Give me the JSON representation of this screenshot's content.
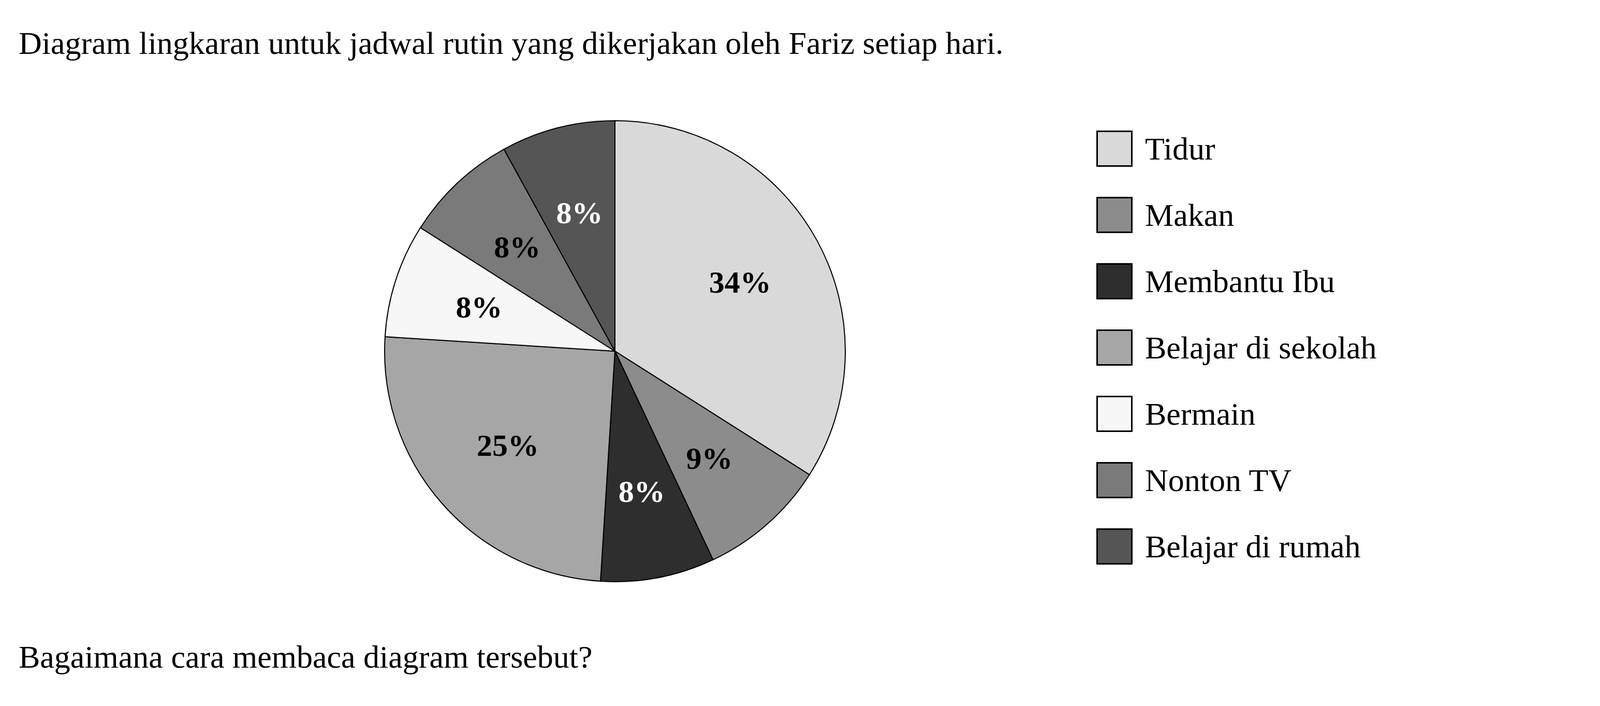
{
  "chart_data": {
    "type": "pie",
    "title": "Diagram lingkaran untuk jadwal rutin yang dikerjakan oleh Fariz setiap hari.",
    "annotations": [
      "Bagaimana cara membaca diagram tersebut?"
    ],
    "categories": [
      "Tidur",
      "Makan",
      "Membantu Ibu",
      "Belajar di sekolah",
      "Bermain",
      "Nonton TV",
      "Belajar di rumah"
    ],
    "values": [
      34,
      9,
      8,
      25,
      8,
      8,
      8
    ],
    "value_labels": [
      "34%",
      "9%",
      "8%",
      "25%",
      "8%",
      "8%",
      "8%"
    ],
    "colors": [
      "#d9d9d9",
      "#8c8c8c",
      "#2e2e2e",
      "#a6a6a6",
      "#f7f7f7",
      "#7a7a7a",
      "#555555"
    ],
    "data_labels": true,
    "legend": "right"
  }
}
